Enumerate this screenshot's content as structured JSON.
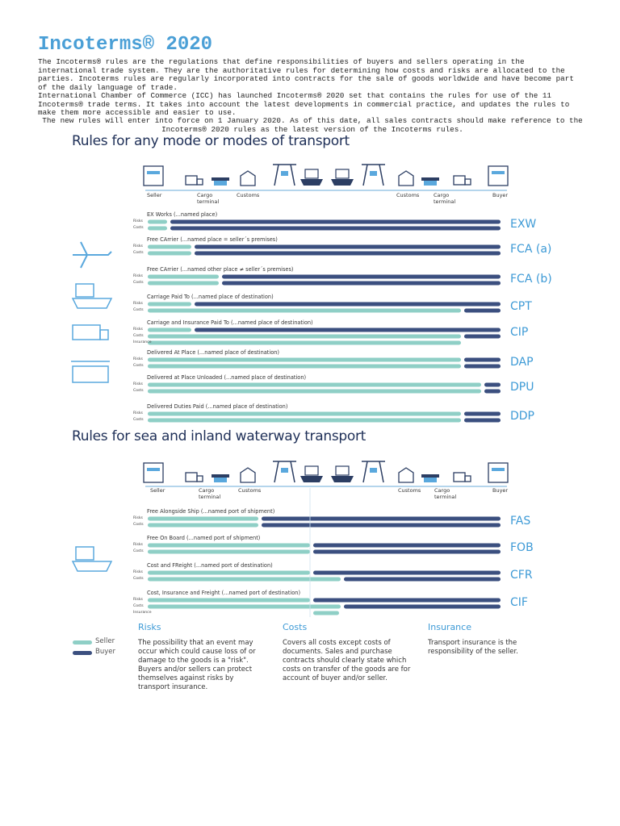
{
  "header": {
    "title": "Incoterms® 2020",
    "paragraphs": [
      "The Incoterms® rules are the regulations that define responsibilities of buyers and sellers operating in the international trade system. They are the authoritative rules for determining how costs and risks are allocated to the parties. Incoterms rules are regularly incorporated into contracts for the sale of goods worldwide and have become part of the daily language of trade.",
      "International Chamber of Commerce (ICC) has launched Incoterms® 2020 set that contains the rules for use of the 11 Incoterms® trade terms. It takes into account the latest developments in commercial practice, and updates the rules to make them more accessible and easier to use.",
      "The new rules will enter into force on 1 January 2020. As of this date, all sales contracts should make reference to the Incoterms® 2020 rules as the latest version of the Incoterms rules."
    ]
  },
  "sections": [
    {
      "heading": "Rules for any mode or modes of transport",
      "locations": [
        "Seller",
        "Cargo terminal",
        "Customs",
        "Customs",
        "Cargo terminal",
        "Buyer"
      ],
      "rules": [
        {
          "description": "EX Works (...named place)",
          "code": "EXW",
          "rows": [
            "Risks",
            "Costs"
          ]
        },
        {
          "description": "Free CArrier (...named place = seller´s premises)",
          "code": "FCA (a)",
          "rows": [
            "Risks",
            "Costs"
          ]
        },
        {
          "description": "Free CArrier (...named other place ≠ seller´s premises)",
          "code": "FCA (b)",
          "rows": [
            "Risks",
            "Costs"
          ]
        },
        {
          "description": "Carriage Paid To (...named place of destination)",
          "code": "CPT",
          "rows": [
            "Risks",
            "Costs"
          ]
        },
        {
          "description": "Carriage and Insurance Paid To (...named place of destination)",
          "code": "CIP",
          "rows": [
            "Risks",
            "Costs",
            "Insurance"
          ]
        },
        {
          "description": "Delivered At Place (...named place of destination)",
          "code": "DAP",
          "rows": [
            "Risks",
            "Costs"
          ]
        },
        {
          "description": "Delivered at Place Unloaded (...named place of destination)",
          "code": "DPU",
          "rows": [
            "Risks",
            "Costs"
          ]
        },
        {
          "description": "Delivered Duties Paid (...named place of destination)",
          "code": "DDP",
          "rows": [
            "Risks",
            "Costs"
          ]
        }
      ]
    },
    {
      "heading": "Rules for sea and inland waterway transport",
      "locations": [
        "Seller",
        "Cargo terminal",
        "Customs",
        "Customs",
        "Cargo terminal",
        "Buyer"
      ],
      "rules": [
        {
          "description": "Free Alongside Ship (...named port of shipment)",
          "code": "FAS",
          "rows": [
            "Risks",
            "Costs"
          ]
        },
        {
          "description": "Free On Board (...named port of shipment)",
          "code": "FOB",
          "rows": [
            "Risks",
            "Costs"
          ]
        },
        {
          "description": "Cost and FReight (...named port of destination)",
          "code": "CFR",
          "rows": [
            "Risks",
            "Costs"
          ]
        },
        {
          "description": "Cost, Insurance and Freight (...named port of destination)",
          "code": "CIF",
          "rows": [
            "Risks",
            "Costs",
            "Insurance"
          ]
        }
      ]
    }
  ],
  "legend": [
    "Seller",
    "Buyer"
  ],
  "notes": [
    {
      "heading": "Risks",
      "text": "The possibility that an event may occur which could cause loss of or damage to the goods is a \"risk\". Buyers and/or sellers can protect themselves against risks by transport insurance."
    },
    {
      "heading": "Costs",
      "text": "Covers all costs except costs of documents. Sales and purchase contracts should clearly state which costs on transfer of the goods are for account of buyer and/or seller."
    },
    {
      "heading": "Insurance",
      "text": "Transport insurance is the responsibility of the seller."
    }
  ]
}
